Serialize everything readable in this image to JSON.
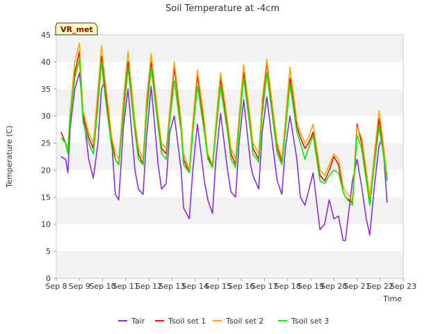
{
  "chart_data": {
    "type": "line",
    "title": "Soil Temperature at -4cm",
    "xlabel": "Time",
    "ylabel": "Temperature (C)",
    "badge": "VR_met",
    "xlim": [
      8,
      23
    ],
    "ylim": [
      0,
      45
    ],
    "x_ticks": [
      "Sep 8",
      "Sep 9",
      "Sep 10",
      "Sep 11",
      "Sep 12",
      "Sep 13",
      "Sep 14",
      "Sep 15",
      "Sep 16",
      "Sep 17",
      "Sep 18",
      "Sep 19",
      "Sep 20",
      "Sep 21",
      "Sep 22",
      "Sep 23"
    ],
    "y_ticks": [
      0,
      5,
      10,
      15,
      20,
      25,
      30,
      35,
      40,
      45
    ],
    "grid": "horizontal bands",
    "legend_position": "bottom",
    "x": [
      8.2,
      8.4,
      8.5,
      8.6,
      8.8,
      9.0,
      9.15,
      9.4,
      9.6,
      9.8,
      9.95,
      10.1,
      10.4,
      10.55,
      10.7,
      10.9,
      11.1,
      11.4,
      11.55,
      11.75,
      11.9,
      12.1,
      12.4,
      12.55,
      12.75,
      12.9,
      13.1,
      13.4,
      13.5,
      13.75,
      13.9,
      14.1,
      14.4,
      14.55,
      14.75,
      14.9,
      15.1,
      15.4,
      15.55,
      15.75,
      15.9,
      16.1,
      16.4,
      16.5,
      16.75,
      16.9,
      17.1,
      17.4,
      17.55,
      17.75,
      17.9,
      18.1,
      18.4,
      18.55,
      18.75,
      18.9,
      19.1,
      19.4,
      19.6,
      19.8,
      20.0,
      20.2,
      20.4,
      20.5,
      20.8,
      21.0,
      21.2,
      21.4,
      21.55,
      21.75,
      21.95,
      22.1,
      22.3
    ],
    "series": [
      {
        "name": "Tair",
        "color": "#8a2be2",
        "values": [
          22.5,
          22,
          19.5,
          28,
          35,
          38,
          31,
          22,
          18.5,
          25,
          35,
          36.5,
          25,
          15.5,
          14.5,
          28,
          35,
          20,
          16.5,
          15.5,
          26,
          35.5,
          21,
          16.5,
          17.5,
          27,
          30,
          20,
          13,
          11,
          20,
          28.5,
          18,
          14.5,
          12,
          22,
          30.5,
          20,
          16,
          15,
          25,
          33,
          21,
          19,
          16.5,
          27,
          33.5,
          23,
          18,
          15.5,
          24,
          30,
          22,
          15,
          13.5,
          16,
          19.5,
          9,
          10,
          14.5,
          11,
          11.5,
          7,
          7,
          18,
          22,
          17,
          11,
          8,
          17,
          24.5,
          26,
          14
        ]
      },
      {
        "name": "Tsoil set 1",
        "color": "#ff0000",
        "values": [
          27,
          25,
          24,
          30,
          38,
          42,
          30,
          26,
          24,
          34,
          41,
          35,
          25,
          22,
          21,
          32,
          40,
          28,
          23,
          21,
          32,
          40,
          29,
          24,
          23,
          30,
          39,
          28,
          22,
          19.5,
          28,
          37.5,
          28,
          22.5,
          20.5,
          28,
          37,
          28,
          23,
          21,
          29,
          38,
          28,
          24,
          22,
          32,
          40,
          29,
          24,
          21.5,
          28,
          37,
          28,
          26,
          24,
          25,
          27,
          19,
          18,
          20,
          22.5,
          21,
          16,
          15,
          14,
          28.5,
          25,
          19,
          14,
          22,
          29.5,
          25,
          18
        ]
      },
      {
        "name": "Tsoil set 2",
        "color": "#ffa500",
        "values": [
          26,
          25,
          24,
          31,
          40,
          43.5,
          31,
          27,
          25,
          35,
          43,
          37,
          26,
          23,
          22,
          33,
          42,
          29,
          24,
          22,
          33,
          41.5,
          30,
          25,
          24,
          31,
          40,
          29,
          23,
          20,
          29,
          38.5,
          29,
          23,
          21,
          29,
          38,
          29,
          24,
          22,
          30,
          39.5,
          29,
          25,
          23,
          33,
          40.5,
          30,
          25,
          22,
          29,
          39,
          29,
          27,
          25,
          26,
          28.5,
          20,
          19,
          21,
          23,
          22,
          17,
          16,
          14.5,
          28,
          26,
          20,
          15,
          23,
          31,
          26,
          19
        ]
      },
      {
        "name": "Tsoil set 3",
        "color": "#00ee00",
        "values": [
          26,
          25,
          23,
          30,
          37,
          40.5,
          29,
          25,
          23,
          32,
          40,
          34,
          24,
          22,
          21,
          30,
          39,
          27,
          22,
          21,
          30,
          39,
          28,
          23,
          22,
          29,
          36.5,
          27,
          21,
          19.5,
          27,
          35.5,
          27,
          22,
          20.5,
          27,
          35.5,
          27,
          22,
          20.5,
          28,
          37,
          27,
          23,
          21.5,
          30,
          38,
          28,
          23,
          21,
          27,
          36,
          27,
          25,
          22,
          24,
          26.5,
          18,
          17.5,
          19,
          20,
          19.5,
          16,
          15,
          13.5,
          26.5,
          24,
          18,
          13.5,
          21,
          28,
          24,
          18
        ]
      }
    ]
  }
}
